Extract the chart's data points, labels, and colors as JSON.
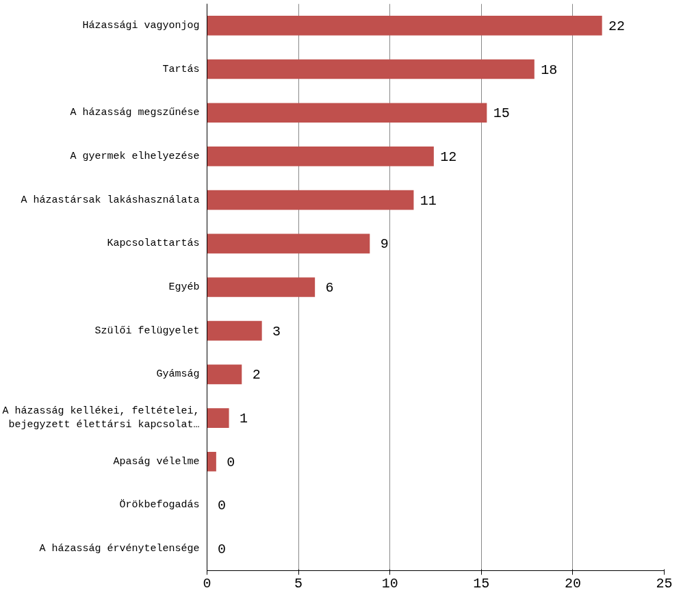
{
  "chart_data": {
    "type": "bar",
    "orientation": "horizontal",
    "categories": [
      "Házassági vagyonjog",
      "Tartás",
      "A házasság megszűnése",
      "A gyermek elhelyezése",
      "A házastársak lakáshasználata",
      "Kapcsolattartás",
      "Egyéb",
      "Szülői felügyelet",
      "Gyámság",
      "A házasság kellékei, feltételei,\nbejegyzett élettársi kapcsolat…",
      "Apaság vélelme",
      "Örökbefogadás",
      "A házasság érvénytelensége"
    ],
    "values": [
      21.6,
      17.9,
      15.3,
      12.4,
      11.3,
      8.9,
      5.9,
      3.0,
      1.9,
      1.2,
      0.5,
      0,
      0
    ],
    "value_labels": [
      "22",
      "18",
      "15",
      "12",
      "11",
      "9",
      "6",
      "3",
      "2",
      "1",
      "0",
      "0",
      "0"
    ],
    "color": "#c0504d",
    "xlim": [
      0,
      25
    ],
    "xticks": [
      0,
      5,
      10,
      15,
      20,
      25
    ],
    "grid": "x"
  }
}
